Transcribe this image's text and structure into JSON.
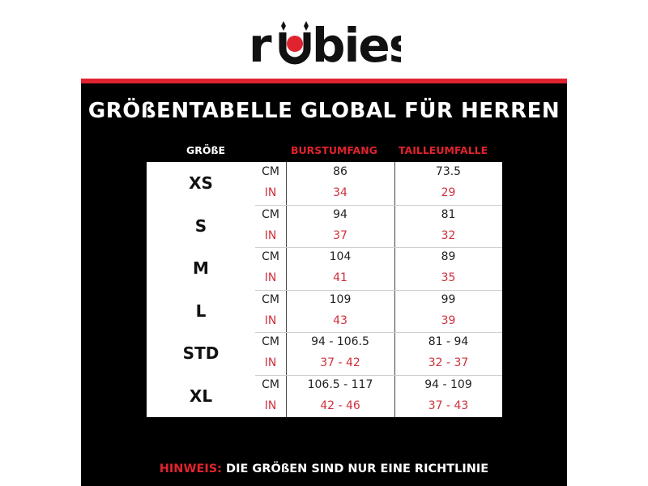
{
  "brand": {
    "logo_text": "rubies",
    "accent_color": "#e0232e"
  },
  "title": "GRÖßENTABELLE GLOBAL FÜR HERREN",
  "headers": {
    "size": "GRÖßE",
    "burst": "BURSTUMFANG",
    "waist": "TAILLEUMFALLE"
  },
  "rows": [
    {
      "size": "XS",
      "cm_label": "CM",
      "in_label": "IN",
      "burst_cm": "86",
      "burst_in": "34",
      "waist_cm": "73.5",
      "waist_in": "29"
    },
    {
      "size": "S",
      "cm_label": "CM",
      "in_label": "IN",
      "burst_cm": "94",
      "burst_in": "37",
      "waist_cm": "81",
      "waist_in": "32"
    },
    {
      "size": "M",
      "cm_label": "CM",
      "in_label": "IN",
      "burst_cm": "104",
      "burst_in": "41",
      "waist_cm": "89",
      "waist_in": "35"
    },
    {
      "size": "L",
      "cm_label": "CM",
      "in_label": "IN",
      "burst_cm": "109",
      "burst_in": "43",
      "waist_cm": "99",
      "waist_in": "39"
    },
    {
      "size": "STD",
      "cm_label": "CM",
      "in_label": "IN",
      "burst_cm": "94 - 106.5",
      "burst_in": "37 - 42",
      "waist_cm": "81 - 94",
      "waist_in": "32 - 37"
    },
    {
      "size": "XL",
      "cm_label": "CM",
      "in_label": "IN",
      "burst_cm": "106.5 - 117",
      "burst_in": "42 - 46",
      "waist_cm": "94 - 109",
      "waist_in": "37 - 43"
    }
  ],
  "note": {
    "label": "HINWEIS:",
    "text": "DIE GRÖßEN SIND NUR EINE RICHTLINIE"
  }
}
